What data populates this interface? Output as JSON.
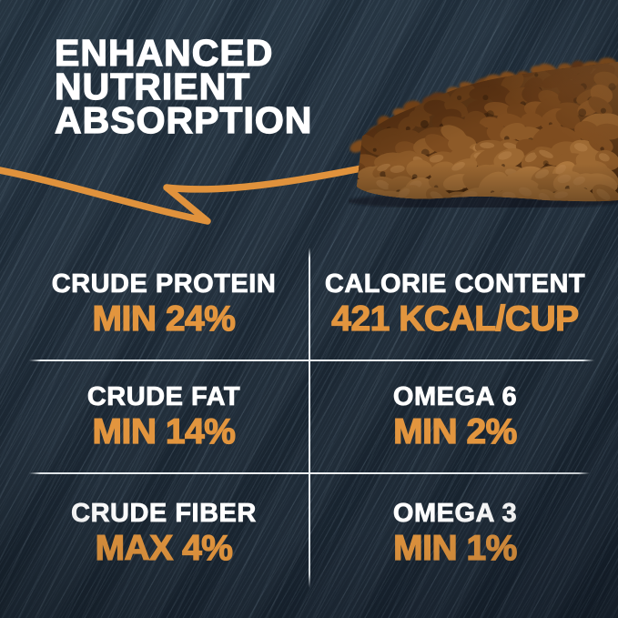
{
  "headline": {
    "line1": "ENHANCED",
    "line2": "NUTRIENT",
    "line3": "ABSORPTION"
  },
  "stats": {
    "cells": [
      {
        "label": "CRUDE PROTEIN",
        "value": "MIN 24%"
      },
      {
        "label": "CALORIE CONTENT",
        "value": "421 KCAL/CUP"
      },
      {
        "label": "CRUDE FAT",
        "value": "MIN 14%"
      },
      {
        "label": "OMEGA 6",
        "value": "MIN 2%"
      },
      {
        "label": "CRUDE FIBER",
        "value": "MAX 4%"
      },
      {
        "label": "OMEGA 3",
        "value": "MIN 1%"
      }
    ]
  },
  "icons": {
    "arrow": "hand-drawn-swoosh-arrow",
    "photo": "kibble-pile"
  },
  "colors": {
    "background": "#1d2935",
    "accent_orange": "#e2953e",
    "text_white": "#ffffff",
    "divider": "#eef3f6",
    "kibble_brown": "#8d5a28"
  }
}
